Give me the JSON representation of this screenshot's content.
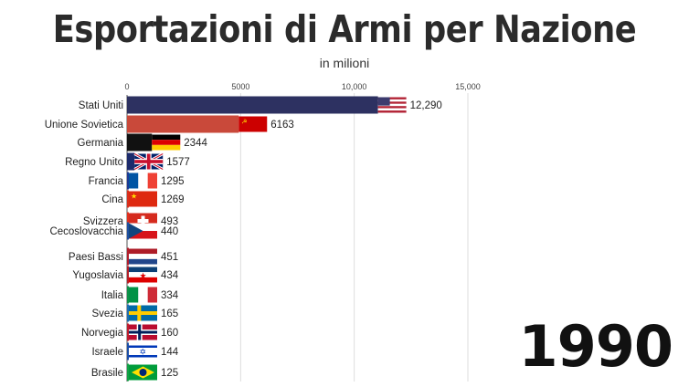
{
  "chart_data": {
    "type": "bar",
    "title": "Esportazioni di Armi per Nazione",
    "subtitle": "in milioni",
    "period": "1990",
    "xlim": [
      0,
      15000
    ],
    "xticks": [
      0,
      5000,
      10000,
      15000
    ],
    "xtick_labels": [
      "0",
      "5000",
      "10,000",
      "15,000"
    ],
    "grid": true,
    "categories": [
      "Stati Uniti",
      "Unione Sovietica",
      "Germania",
      "Regno Unito",
      "Francia",
      "Cina",
      "Svizzera",
      "Cecoslovacchia",
      "Paesi Bassi",
      "Yugoslavia",
      "Italia",
      "Svezia",
      "Norvegia",
      "Israele",
      "Brasile"
    ],
    "values": [
      12290,
      6163,
      2344,
      1577,
      1295,
      1269,
      493,
      440,
      451,
      434,
      334,
      165,
      160,
      144,
      125
    ],
    "value_labels": [
      "12,290",
      "6163",
      "2344",
      "1577",
      "1295",
      "1269",
      "493",
      "440",
      "451",
      "434",
      "334",
      "165",
      "160",
      "144",
      "125"
    ],
    "bar_colors": [
      "#2d3161",
      "#c9493a",
      "#111111",
      "#1c2a6b",
      "#1f3a93",
      "#d7301f",
      "#e0311f",
      "#1f4fa0",
      "#b21f2d",
      "#b5202a",
      "#0f9148",
      "#1f6eb0",
      "#bf1f2e",
      "#1d4fa6",
      "#14a046"
    ],
    "flags": [
      "usa-flag",
      "ussr-flag",
      "germany-flag",
      "uk-flag",
      "france-flag",
      "china-flag",
      "switzerland-flag",
      "czechoslovakia-flag",
      "netherlands-flag",
      "yugoslavia-flag",
      "italy-flag",
      "sweden-flag",
      "norway-flag",
      "israel-flag",
      "brazil-flag"
    ]
  }
}
